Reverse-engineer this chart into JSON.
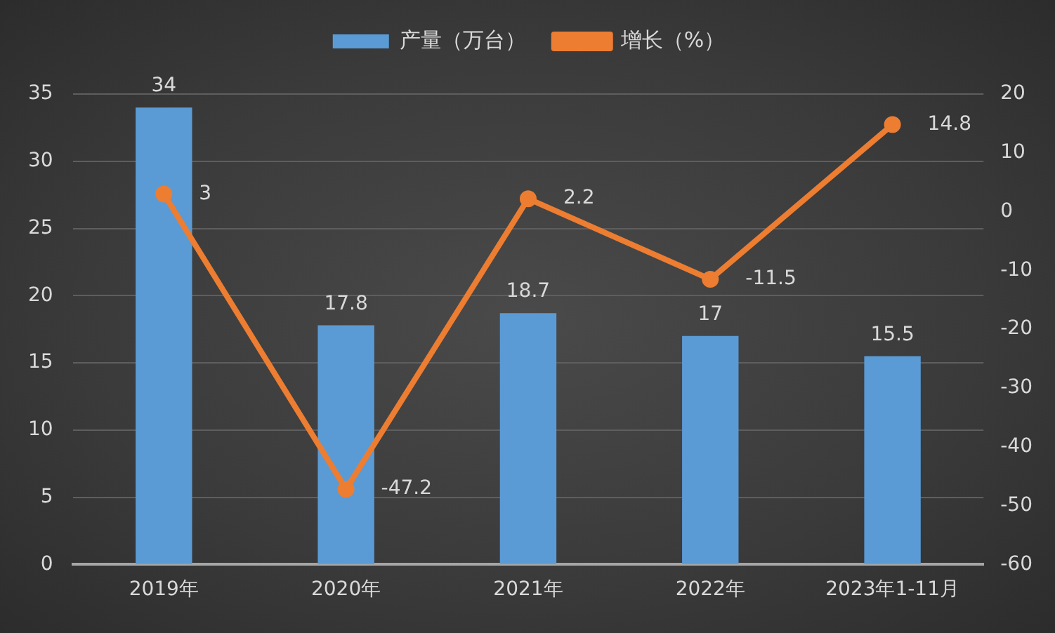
{
  "chart_data": {
    "type": "bar",
    "categories": [
      "2019年",
      "2020年",
      "2021年",
      "2022年",
      "2023年1-11月"
    ],
    "series": [
      {
        "name": "产量（万台）",
        "color": "#5b9bd5",
        "values": [
          34,
          17.8,
          18.7,
          17,
          15.5
        ]
      },
      {
        "name": "增长（%）",
        "type": "line",
        "axis": "y2",
        "color": "#ed7d31",
        "values": [
          3,
          -47.2,
          2.2,
          -11.5,
          14.8
        ]
      }
    ],
    "ylim": [
      0,
      35
    ],
    "yticks": [
      0,
      5,
      10,
      15,
      20,
      25,
      30,
      35
    ],
    "y2lim": [
      -60,
      20
    ],
    "y2ticks": [
      -60,
      -50,
      -40,
      -30,
      -20,
      -10,
      0,
      10,
      20
    ],
    "data_labels": true,
    "grid": "y",
    "legend": "top",
    "marker": "circle",
    "line_style": "solid"
  }
}
